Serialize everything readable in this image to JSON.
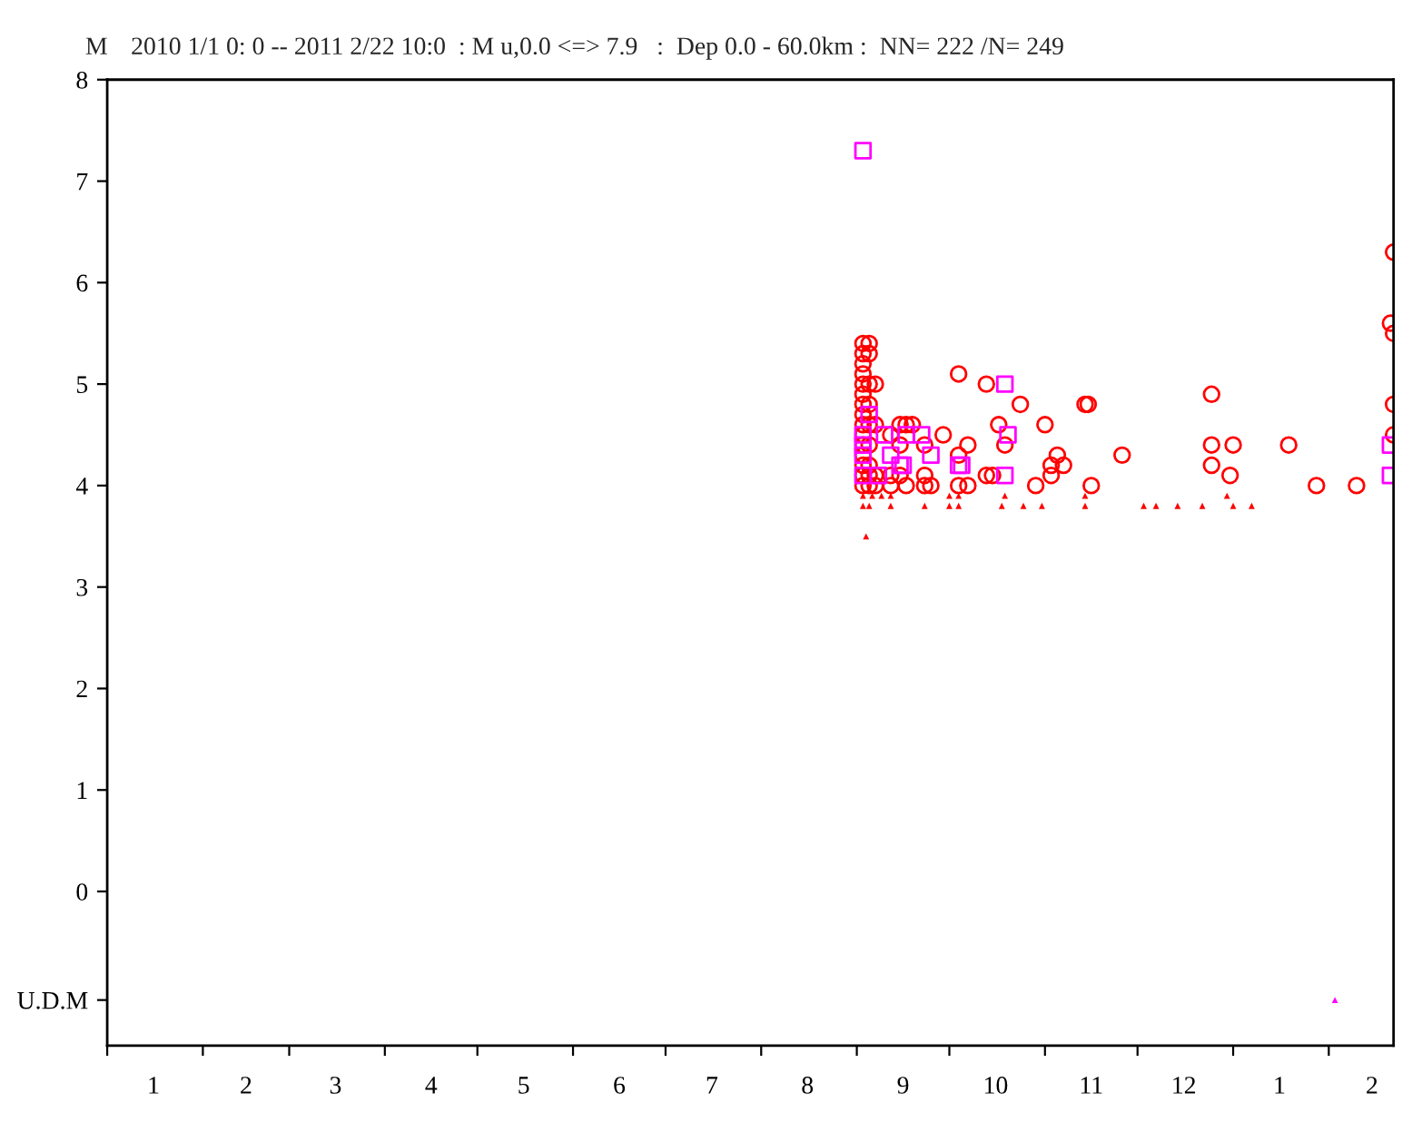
{
  "chart_data": {
    "type": "scatter",
    "title": "2010 1/1 0: 0 -- 2011 2/22 10:0  : M u,0.0 <=> 7.9   :  Dep 0.0 - 60.0km :  NN= 222 /N= 249",
    "ylabel": "M",
    "xlim": [
      "2010-01-01",
      "2011-02-22"
    ],
    "xticks": [
      {
        "value": "2010-01-01",
        "label": null
      },
      {
        "value": "2010-01-16",
        "label": "1"
      },
      {
        "value": "2010-02-01",
        "label": null
      },
      {
        "value": "2010-02-15",
        "label": "2"
      },
      {
        "value": "2010-03-01",
        "label": null
      },
      {
        "value": "2010-03-16",
        "label": "3"
      },
      {
        "value": "2010-04-01",
        "label": null
      },
      {
        "value": "2010-04-16",
        "label": "4"
      },
      {
        "value": "2010-05-01",
        "label": null
      },
      {
        "value": "2010-05-16",
        "label": "5"
      },
      {
        "value": "2010-06-01",
        "label": null
      },
      {
        "value": "2010-06-16",
        "label": "6"
      },
      {
        "value": "2010-07-01",
        "label": null
      },
      {
        "value": "2010-07-16",
        "label": "7"
      },
      {
        "value": "2010-08-01",
        "label": null
      },
      {
        "value": "2010-08-16",
        "label": "8"
      },
      {
        "value": "2010-09-01",
        "label": null
      },
      {
        "value": "2010-09-16",
        "label": "9"
      },
      {
        "value": "2010-10-01",
        "label": null
      },
      {
        "value": "2010-10-16",
        "label": "10"
      },
      {
        "value": "2010-11-01",
        "label": null
      },
      {
        "value": "2010-11-16",
        "label": "11"
      },
      {
        "value": "2010-12-01",
        "label": null
      },
      {
        "value": "2010-12-16",
        "label": "12"
      },
      {
        "value": "2011-01-01",
        "label": null
      },
      {
        "value": "2011-01-16",
        "label": "1"
      },
      {
        "value": "2011-02-01",
        "label": null
      },
      {
        "value": "2011-02-15",
        "label": "2"
      }
    ],
    "ylim": [
      -1.52,
      8
    ],
    "yticks": [
      {
        "value": -1.07,
        "label": "U.D.M"
      },
      0,
      1,
      2,
      3,
      4,
      5,
      6,
      7,
      8
    ],
    "grid": false,
    "legend": false,
    "series": [
      {
        "color": "#ff0000",
        "marker": "circle",
        "x": [
          "2010-09-03",
          "2010-09-03",
          "2010-09-03",
          "2010-09-03",
          "2010-09-03",
          "2010-09-03",
          "2010-09-03",
          "2010-09-03",
          "2010-09-03",
          "2010-09-03",
          "2010-09-03",
          "2010-09-03",
          "2010-09-03",
          "2010-09-03",
          "2010-09-03",
          "2010-09-05",
          "2010-09-05",
          "2010-09-05",
          "2010-09-05",
          "2010-09-05",
          "2010-09-05",
          "2010-09-05",
          "2010-09-05",
          "2010-09-05",
          "2010-09-07",
          "2010-09-07",
          "2010-09-07",
          "2010-09-07",
          "2010-09-12",
          "2010-09-12",
          "2010-09-12",
          "2010-09-15",
          "2010-09-15",
          "2010-09-15",
          "2010-09-17",
          "2010-09-17",
          "2010-09-19",
          "2010-09-23",
          "2010-09-23",
          "2010-09-23",
          "2010-09-25",
          "2010-09-29",
          "2010-10-04",
          "2010-10-04",
          "2010-10-04",
          "2010-10-07",
          "2010-10-07",
          "2010-10-13",
          "2010-10-13",
          "2010-10-15",
          "2010-10-17",
          "2010-10-19",
          "2010-10-24",
          "2010-10-29",
          "2010-11-01",
          "2010-11-03",
          "2010-11-03",
          "2010-11-05",
          "2010-11-07",
          "2010-11-14",
          "2010-11-15",
          "2010-11-16",
          "2010-11-26",
          "2010-12-25",
          "2010-12-25",
          "2010-12-25",
          "2010-12-31",
          "2011-01-01",
          "2011-01-19",
          "2011-01-28",
          "2011-02-10",
          "2011-02-22",
          "2011-02-21",
          "2011-02-22",
          "2011-02-22",
          "2011-02-22"
        ],
        "values": [
          5.4,
          5.3,
          5.2,
          5.1,
          5.0,
          4.9,
          4.8,
          4.7,
          4.6,
          4.5,
          4.4,
          4.3,
          4.2,
          4.1,
          4.0,
          5.4,
          5.3,
          5.0,
          4.8,
          4.6,
          4.4,
          4.2,
          4.1,
          4.0,
          5.0,
          4.6,
          4.1,
          4.0,
          4.5,
          4.1,
          4.0,
          4.6,
          4.4,
          4.1,
          4.6,
          4.0,
          4.6,
          4.4,
          4.1,
          4.0,
          4.0,
          4.5,
          5.1,
          4.3,
          4.0,
          4.4,
          4.0,
          5.0,
          4.1,
          4.1,
          4.6,
          4.4,
          4.8,
          4.0,
          4.6,
          4.2,
          4.1,
          4.3,
          4.2,
          4.8,
          4.8,
          4.0,
          4.3,
          4.9,
          4.4,
          4.2,
          4.1,
          4.4,
          4.4,
          4.0,
          4.0,
          6.3,
          5.6,
          5.5,
          4.8,
          4.5
        ]
      },
      {
        "color": "#ff00ff",
        "marker": "square",
        "x": [
          "2010-09-03",
          "2010-09-05",
          "2010-09-03",
          "2010-09-03",
          "2010-09-03",
          "2010-09-03",
          "2010-09-08",
          "2010-09-10",
          "2010-09-12",
          "2010-09-15",
          "2010-09-16",
          "2010-09-17",
          "2010-09-22",
          "2010-09-25",
          "2010-10-04",
          "2010-10-05",
          "2010-10-19",
          "2010-10-20",
          "2010-10-19",
          "2011-02-21",
          "2011-02-21"
        ],
        "values": [
          7.3,
          4.7,
          4.5,
          4.4,
          4.3,
          4.1,
          4.1,
          4.5,
          4.3,
          4.2,
          4.2,
          4.5,
          4.5,
          4.3,
          4.2,
          4.2,
          4.1,
          4.5,
          5.0,
          4.4,
          4.1
        ]
      },
      {
        "color": "#ff0000",
        "marker": "triangle",
        "x": [
          "2010-09-03",
          "2010-09-06",
          "2010-09-09",
          "2010-09-12",
          "2010-10-01",
          "2010-10-04",
          "2010-10-19",
          "2010-11-14",
          "2010-12-30",
          "2010-09-03",
          "2010-09-05",
          "2010-09-12",
          "2010-09-23",
          "2010-10-01",
          "2010-10-04",
          "2010-10-18",
          "2010-10-25",
          "2010-10-31",
          "2010-11-14",
          "2010-12-03",
          "2010-12-07",
          "2010-12-14",
          "2010-12-22",
          "2011-01-01",
          "2011-01-07",
          "2010-09-04"
        ],
        "values": [
          3.9,
          3.9,
          3.9,
          3.9,
          3.9,
          3.9,
          3.9,
          3.9,
          3.9,
          3.8,
          3.8,
          3.8,
          3.8,
          3.8,
          3.8,
          3.8,
          3.8,
          3.8,
          3.8,
          3.8,
          3.8,
          3.8,
          3.8,
          3.8,
          3.8,
          3.5
        ]
      },
      {
        "color": "#ff00ff",
        "marker": "triangle",
        "x": [
          "2011-02-03"
        ],
        "values": [
          -1.07
        ]
      }
    ]
  }
}
